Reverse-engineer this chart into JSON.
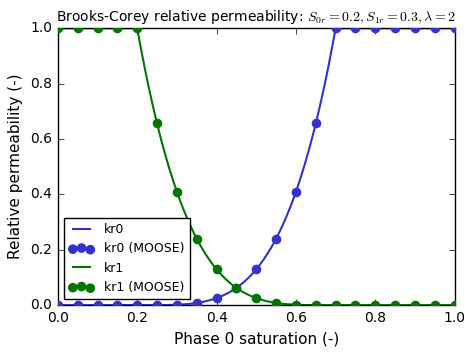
{
  "title_text": "Brooks-Corey relative permeability: ",
  "title_math": "$S_{0r}=0.2, S_{1r}=0.3, \\lambda=2$",
  "xlabel": "Phase 0 saturation (-)",
  "ylabel": "Relative permeability (-)",
  "S0r": 0.2,
  "S1r": 0.3,
  "lam": 2.0,
  "xlim": [
    0.0,
    1.0
  ],
  "ylim": [
    0.0,
    1.0
  ],
  "blue_color": "#3333cc",
  "green_color": "#007700",
  "n_moose_points": 21,
  "legend_labels": [
    "kr0",
    "kr0 (MOOSE)",
    "kr1",
    "kr1 (MOOSE)"
  ],
  "background_color": "#ffffff",
  "fig_facecolor": "#ffffff"
}
